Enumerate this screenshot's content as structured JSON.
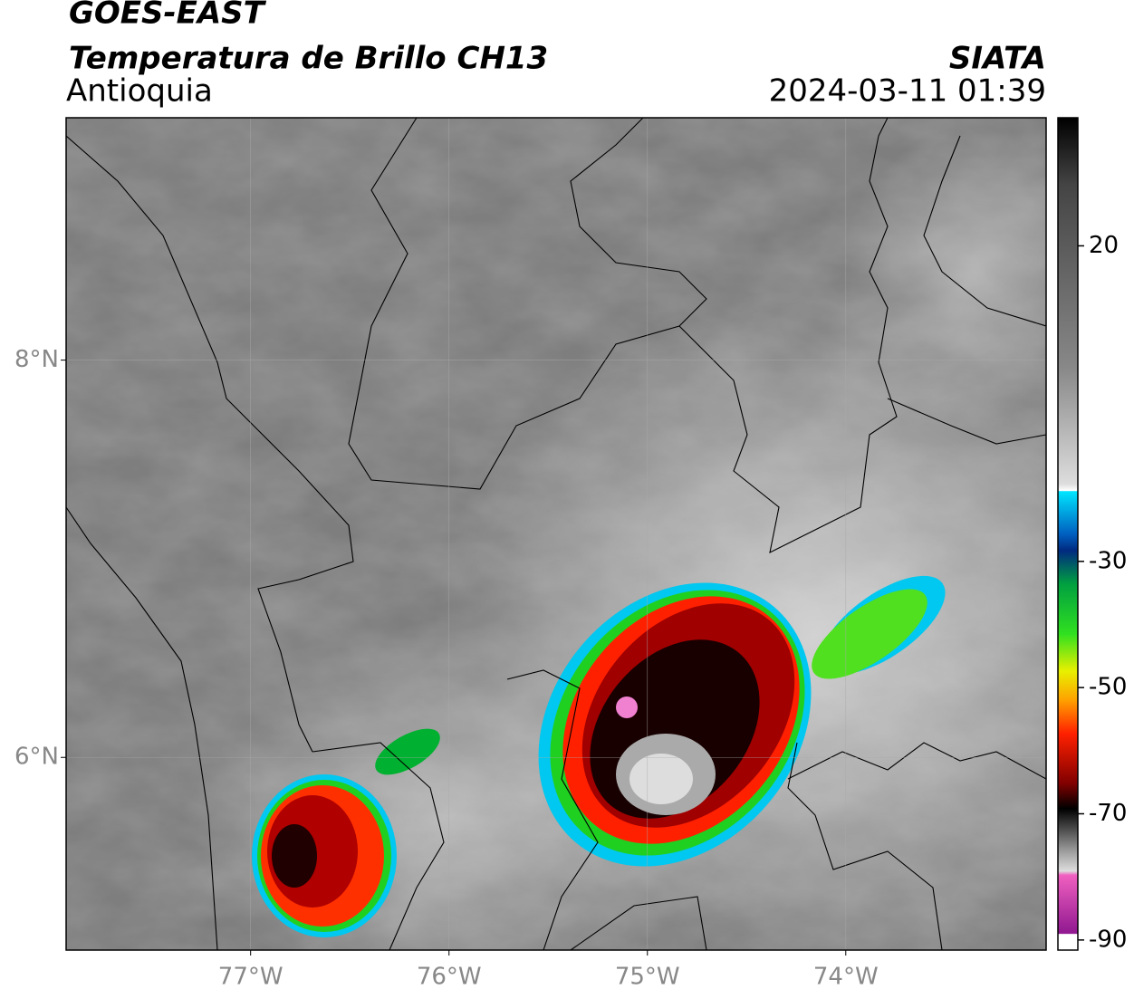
{
  "header": {
    "title": "GOES-EAST",
    "subtitle": "Temperatura de Brillo CH13",
    "region": "Antioquia",
    "source": "SIATA",
    "datetime": "2024-03-11 01:39"
  },
  "map": {
    "xlim": [
      -77.93,
      -72.99
    ],
    "ylim": [
      5.03,
      9.22
    ],
    "xticks": [
      {
        "value": -77,
        "label": "77°W"
      },
      {
        "value": -76,
        "label": "76°W"
      },
      {
        "value": -75,
        "label": "75°W"
      },
      {
        "value": -74,
        "label": "74°W"
      }
    ],
    "yticks": [
      {
        "value": 6,
        "label": "6°N"
      },
      {
        "value": 8,
        "label": "8°N"
      }
    ],
    "grid": true
  },
  "colorbar": {
    "lim": [
      -91.6,
      40.3
    ],
    "ticks": [
      -90,
      -70,
      -50,
      -30,
      20
    ]
  }
}
